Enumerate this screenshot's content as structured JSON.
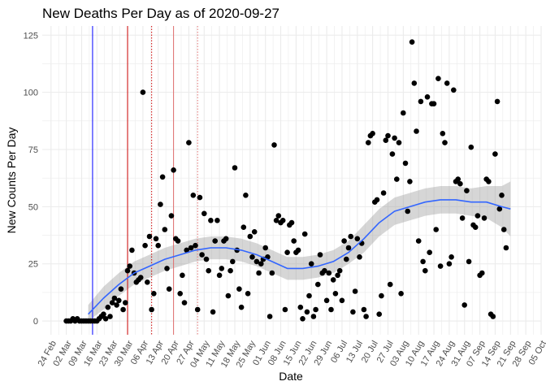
{
  "chart_data": {
    "type": "scatter",
    "title": "New Deaths Per Day as of 2020-09-27",
    "xlabel": "Date",
    "ylabel": "New Counts Per Day",
    "x_domain": [
      "2020-02-20",
      "2020-10-05"
    ],
    "ylim": [
      -6,
      129
    ],
    "y_ticks": [
      0,
      25,
      50,
      75,
      100,
      125
    ],
    "x_ticks": [
      {
        "date": "2020-02-24",
        "label": "24 Feb"
      },
      {
        "date": "2020-03-02",
        "label": "02 Mar"
      },
      {
        "date": "2020-03-09",
        "label": "09 Mar"
      },
      {
        "date": "2020-03-16",
        "label": "16 Mar"
      },
      {
        "date": "2020-03-23",
        "label": "23 Mar"
      },
      {
        "date": "2020-03-30",
        "label": "30 Mar"
      },
      {
        "date": "2020-04-06",
        "label": "06 Apr"
      },
      {
        "date": "2020-04-13",
        "label": "13 Apr"
      },
      {
        "date": "2020-04-20",
        "label": "20 Apr"
      },
      {
        "date": "2020-04-27",
        "label": "27 Apr"
      },
      {
        "date": "2020-05-04",
        "label": "04 May"
      },
      {
        "date": "2020-05-11",
        "label": "11 May"
      },
      {
        "date": "2020-05-18",
        "label": "18 May"
      },
      {
        "date": "2020-05-25",
        "label": "25 May"
      },
      {
        "date": "2020-06-01",
        "label": "01 Jun"
      },
      {
        "date": "2020-06-08",
        "label": "08 Jun"
      },
      {
        "date": "2020-06-15",
        "label": "15 Jun"
      },
      {
        "date": "2020-06-22",
        "label": "22 Jun"
      },
      {
        "date": "2020-06-29",
        "label": "29 Jun"
      },
      {
        "date": "2020-07-06",
        "label": "06 Jul"
      },
      {
        "date": "2020-07-13",
        "label": "13 Jul"
      },
      {
        "date": "2020-07-20",
        "label": "20 Jul"
      },
      {
        "date": "2020-07-27",
        "label": "27 Jul"
      },
      {
        "date": "2020-08-03",
        "label": "03 Aug"
      },
      {
        "date": "2020-08-10",
        "label": "10 Aug"
      },
      {
        "date": "2020-08-17",
        "label": "17 Aug"
      },
      {
        "date": "2020-08-24",
        "label": "24 Aug"
      },
      {
        "date": "2020-08-31",
        "label": "31 Aug"
      },
      {
        "date": "2020-09-07",
        "label": "07 Sep"
      },
      {
        "date": "2020-09-14",
        "label": "14 Sep"
      },
      {
        "date": "2020-09-21",
        "label": "21 Sep"
      },
      {
        "date": "2020-09-28",
        "label": "28 Sep"
      },
      {
        "date": "2020-10-05",
        "label": "05 Oct"
      }
    ],
    "reference_lines": [
      {
        "date": "2020-03-14",
        "color": "#0000ff",
        "style": "solid"
      },
      {
        "date": "2020-03-30",
        "color": "#cc0000",
        "style": "solid"
      },
      {
        "date": "2020-04-10",
        "color": "#cc0000",
        "style": "dotted"
      },
      {
        "date": "2020-04-20",
        "color": "#e07070",
        "style": "solid"
      },
      {
        "date": "2020-05-01",
        "color": "#e07070",
        "style": "dotted"
      }
    ],
    "colors": {
      "points": "#000000",
      "smooth": "#3366ff",
      "band": "#999999",
      "grid": "#ebebeb"
    },
    "points": [
      [
        "2020-03-02",
        0
      ],
      [
        "2020-03-03",
        0
      ],
      [
        "2020-03-04",
        0
      ],
      [
        "2020-03-05",
        1
      ],
      [
        "2020-03-06",
        0
      ],
      [
        "2020-03-07",
        1
      ],
      [
        "2020-03-08",
        0
      ],
      [
        "2020-03-09",
        0
      ],
      [
        "2020-03-10",
        0
      ],
      [
        "2020-03-11",
        0
      ],
      [
        "2020-03-12",
        0
      ],
      [
        "2020-03-13",
        0
      ],
      [
        "2020-03-14",
        0
      ],
      [
        "2020-03-15",
        0
      ],
      [
        "2020-03-16",
        0
      ],
      [
        "2020-03-17",
        1
      ],
      [
        "2020-03-18",
        2
      ],
      [
        "2020-03-19",
        3
      ],
      [
        "2020-03-20",
        1
      ],
      [
        "2020-03-21",
        6
      ],
      [
        "2020-03-22",
        2
      ],
      [
        "2020-03-23",
        8
      ],
      [
        "2020-03-24",
        10
      ],
      [
        "2020-03-25",
        7
      ],
      [
        "2020-03-26",
        9
      ],
      [
        "2020-03-27",
        14
      ],
      [
        "2020-03-28",
        5
      ],
      [
        "2020-03-29",
        8
      ],
      [
        "2020-03-30",
        22
      ],
      [
        "2020-03-31",
        24
      ],
      [
        "2020-04-01",
        31
      ],
      [
        "2020-04-02",
        21
      ],
      [
        "2020-04-03",
        17
      ],
      [
        "2020-04-04",
        18
      ],
      [
        "2020-04-05",
        19
      ],
      [
        "2020-04-06",
        100
      ],
      [
        "2020-04-07",
        33
      ],
      [
        "2020-04-08",
        17
      ],
      [
        "2020-04-09",
        37
      ],
      [
        "2020-04-10",
        5
      ],
      [
        "2020-04-11",
        12
      ],
      [
        "2020-04-12",
        36
      ],
      [
        "2020-04-13",
        33
      ],
      [
        "2020-04-14",
        51
      ],
      [
        "2020-04-15",
        63
      ],
      [
        "2020-04-16",
        40
      ],
      [
        "2020-04-17",
        23
      ],
      [
        "2020-04-18",
        14
      ],
      [
        "2020-04-19",
        46
      ],
      [
        "2020-04-20",
        66
      ],
      [
        "2020-04-21",
        36
      ],
      [
        "2020-04-22",
        35
      ],
      [
        "2020-04-23",
        12
      ],
      [
        "2020-04-24",
        20
      ],
      [
        "2020-04-25",
        8
      ],
      [
        "2020-04-26",
        31
      ],
      [
        "2020-04-27",
        78
      ],
      [
        "2020-04-28",
        32
      ],
      [
        "2020-04-29",
        55
      ],
      [
        "2020-04-30",
        33
      ],
      [
        "2020-05-01",
        5
      ],
      [
        "2020-05-02",
        54
      ],
      [
        "2020-05-03",
        29
      ],
      [
        "2020-05-04",
        47
      ],
      [
        "2020-05-05",
        27
      ],
      [
        "2020-05-06",
        22
      ],
      [
        "2020-05-07",
        44
      ],
      [
        "2020-05-08",
        4
      ],
      [
        "2020-05-09",
        35
      ],
      [
        "2020-05-10",
        44
      ],
      [
        "2020-05-11",
        20
      ],
      [
        "2020-05-12",
        23
      ],
      [
        "2020-05-13",
        35
      ],
      [
        "2020-05-14",
        36
      ],
      [
        "2020-05-15",
        11
      ],
      [
        "2020-05-16",
        22
      ],
      [
        "2020-05-17",
        26
      ],
      [
        "2020-05-18",
        67
      ],
      [
        "2020-05-19",
        31
      ],
      [
        "2020-05-20",
        14
      ],
      [
        "2020-05-21",
        6
      ],
      [
        "2020-05-22",
        41
      ],
      [
        "2020-05-23",
        55
      ],
      [
        "2020-05-24",
        12
      ],
      [
        "2020-05-25",
        37
      ],
      [
        "2020-05-26",
        28
      ],
      [
        "2020-05-27",
        39
      ],
      [
        "2020-05-28",
        26
      ],
      [
        "2020-05-29",
        21
      ],
      [
        "2020-05-30",
        25
      ],
      [
        "2020-05-31",
        27
      ],
      [
        "2020-06-01",
        32
      ],
      [
        "2020-06-02",
        28
      ],
      [
        "2020-06-03",
        2
      ],
      [
        "2020-06-04",
        21
      ],
      [
        "2020-06-05",
        77
      ],
      [
        "2020-06-06",
        44
      ],
      [
        "2020-06-07",
        46
      ],
      [
        "2020-06-08",
        43
      ],
      [
        "2020-06-09",
        44
      ],
      [
        "2020-06-10",
        5
      ],
      [
        "2020-06-11",
        30
      ],
      [
        "2020-06-12",
        42
      ],
      [
        "2020-06-13",
        43
      ],
      [
        "2020-06-14",
        35
      ],
      [
        "2020-06-15",
        30
      ],
      [
        "2020-06-16",
        31
      ],
      [
        "2020-06-17",
        6
      ],
      [
        "2020-06-18",
        1
      ],
      [
        "2020-06-19",
        38
      ],
      [
        "2020-06-20",
        4
      ],
      [
        "2020-06-21",
        11
      ],
      [
        "2020-06-22",
        25
      ],
      [
        "2020-06-23",
        2
      ],
      [
        "2020-06-24",
        5
      ],
      [
        "2020-06-25",
        16
      ],
      [
        "2020-06-26",
        29
      ],
      [
        "2020-06-27",
        21
      ],
      [
        "2020-06-28",
        22
      ],
      [
        "2020-06-29",
        9
      ],
      [
        "2020-06-30",
        21
      ],
      [
        "2020-07-01",
        5
      ],
      [
        "2020-07-02",
        18
      ],
      [
        "2020-07-03",
        12
      ],
      [
        "2020-07-04",
        20
      ],
      [
        "2020-07-05",
        22
      ],
      [
        "2020-07-06",
        9
      ],
      [
        "2020-07-07",
        35
      ],
      [
        "2020-07-08",
        27
      ],
      [
        "2020-07-09",
        32
      ],
      [
        "2020-07-10",
        37
      ],
      [
        "2020-07-11",
        4
      ],
      [
        "2020-07-12",
        13
      ],
      [
        "2020-07-13",
        36
      ],
      [
        "2020-07-14",
        28
      ],
      [
        "2020-07-15",
        34
      ],
      [
        "2020-07-16",
        5
      ],
      [
        "2020-07-17",
        2
      ],
      [
        "2020-07-18",
        78
      ],
      [
        "2020-07-19",
        81
      ],
      [
        "2020-07-20",
        82
      ],
      [
        "2020-07-21",
        52
      ],
      [
        "2020-07-22",
        53
      ],
      [
        "2020-07-23",
        3
      ],
      [
        "2020-07-24",
        11
      ],
      [
        "2020-07-25",
        56
      ],
      [
        "2020-07-26",
        79
      ],
      [
        "2020-07-27",
        81
      ],
      [
        "2020-07-28",
        16
      ],
      [
        "2020-07-29",
        73
      ],
      [
        "2020-07-30",
        80
      ],
      [
        "2020-07-31",
        62
      ],
      [
        "2020-08-01",
        78
      ],
      [
        "2020-08-02",
        12
      ],
      [
        "2020-08-03",
        91
      ],
      [
        "2020-08-04",
        69
      ],
      [
        "2020-08-05",
        48
      ],
      [
        "2020-08-06",
        61
      ],
      [
        "2020-08-07",
        122
      ],
      [
        "2020-08-08",
        104
      ],
      [
        "2020-08-09",
        83
      ],
      [
        "2020-08-10",
        35
      ],
      [
        "2020-08-11",
        96
      ],
      [
        "2020-08-12",
        26
      ],
      [
        "2020-08-13",
        22
      ],
      [
        "2020-08-14",
        98
      ],
      [
        "2020-08-15",
        30
      ],
      [
        "2020-08-16",
        95
      ],
      [
        "2020-08-17",
        95
      ],
      [
        "2020-08-18",
        40
      ],
      [
        "2020-08-19",
        106
      ],
      [
        "2020-08-20",
        24
      ],
      [
        "2020-08-21",
        82
      ],
      [
        "2020-08-22",
        78
      ],
      [
        "2020-08-23",
        104
      ],
      [
        "2020-08-24",
        25
      ],
      [
        "2020-08-25",
        28
      ],
      [
        "2020-08-26",
        101
      ],
      [
        "2020-08-27",
        61
      ],
      [
        "2020-08-28",
        62
      ],
      [
        "2020-08-29",
        60
      ],
      [
        "2020-08-30",
        45
      ],
      [
        "2020-08-31",
        7
      ],
      [
        "2020-09-01",
        57
      ],
      [
        "2020-09-02",
        26
      ],
      [
        "2020-09-03",
        76
      ],
      [
        "2020-09-04",
        42
      ],
      [
        "2020-09-05",
        41
      ],
      [
        "2020-09-06",
        46
      ],
      [
        "2020-09-07",
        20
      ],
      [
        "2020-09-08",
        21
      ],
      [
        "2020-09-09",
        45
      ],
      [
        "2020-09-10",
        62
      ],
      [
        "2020-09-11",
        61
      ],
      [
        "2020-09-12",
        3
      ],
      [
        "2020-09-13",
        2
      ],
      [
        "2020-09-14",
        73
      ],
      [
        "2020-09-15",
        96
      ],
      [
        "2020-09-16",
        49
      ],
      [
        "2020-09-17",
        55
      ],
      [
        "2020-09-18",
        40
      ],
      [
        "2020-09-19",
        32
      ]
    ],
    "smooth_line": {
      "x": [
        "2020-03-12",
        "2020-03-19",
        "2020-03-26",
        "2020-04-02",
        "2020-04-09",
        "2020-04-16",
        "2020-04-23",
        "2020-04-30",
        "2020-05-07",
        "2020-05-14",
        "2020-05-21",
        "2020-05-28",
        "2020-06-04",
        "2020-06-11",
        "2020-06-18",
        "2020-06-25",
        "2020-07-02",
        "2020-07-09",
        "2020-07-16",
        "2020-07-23",
        "2020-07-30",
        "2020-08-06",
        "2020-08-13",
        "2020-08-20",
        "2020-08-27",
        "2020-09-03",
        "2020-09-10",
        "2020-09-17",
        "2020-09-21"
      ],
      "y": [
        3,
        10,
        16,
        21,
        24,
        27,
        29,
        31,
        32,
        32,
        31,
        29,
        26,
        23,
        23,
        24,
        26,
        30,
        36,
        43,
        48,
        50,
        52,
        53,
        53,
        52,
        52,
        50,
        49
      ],
      "lower": [
        0,
        5,
        11,
        16,
        19,
        22,
        24,
        26,
        27,
        27,
        26,
        24,
        21,
        18,
        18,
        19,
        21,
        25,
        30,
        37,
        42,
        44,
        46,
        47,
        47,
        46,
        45,
        41,
        37
      ],
      "upper": [
        7,
        15,
        21,
        26,
        29,
        32,
        34,
        36,
        37,
        37,
        36,
        34,
        31,
        28,
        28,
        29,
        31,
        35,
        42,
        49,
        54,
        56,
        58,
        59,
        59,
        58,
        59,
        59,
        61
      ]
    }
  }
}
